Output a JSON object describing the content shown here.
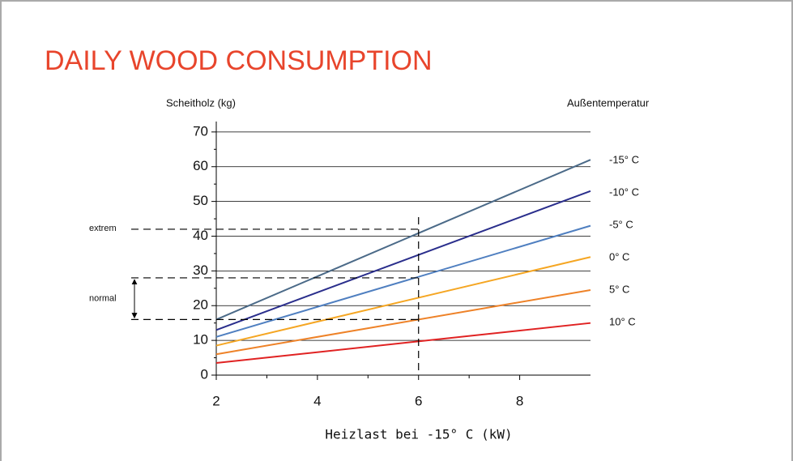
{
  "chart_data": {
    "type": "line",
    "title": "DAILY WOOD CONSUMPTION",
    "y_label": "Scheitholz (kg)",
    "legend_title": "Außentemperatur",
    "x_label": "Heizlast bei -15° C (kW)",
    "x": [
      2,
      9.4
    ],
    "series": [
      {
        "name": "-15° C",
        "color": "#4b6a88",
        "values": [
          16,
          62
        ]
      },
      {
        "name": "-10° C",
        "color": "#2a2e8c",
        "values": [
          13,
          53
        ]
      },
      {
        "name": "-5° C",
        "color": "#4f7fc0",
        "values": [
          11,
          43
        ]
      },
      {
        "name": "0° C",
        "color": "#f5a623",
        "values": [
          8.5,
          34
        ]
      },
      {
        "name": "5° C",
        "color": "#ee8228",
        "values": [
          6,
          24.5
        ]
      },
      {
        "name": "10° C",
        "color": "#e02222",
        "values": [
          3.5,
          15
        ]
      }
    ],
    "xlim": [
      2,
      9.4
    ],
    "xticks": [
      2,
      4,
      6,
      8
    ],
    "ylim": [
      0,
      73
    ],
    "yticks": [
      0,
      10,
      20,
      30,
      40,
      50,
      60,
      70
    ],
    "annotations": [
      {
        "label": "extrem",
        "values": [
          42
        ]
      },
      {
        "label": "normal",
        "values": [
          16,
          28
        ]
      }
    ],
    "marker_x": 6,
    "grid": true
  }
}
